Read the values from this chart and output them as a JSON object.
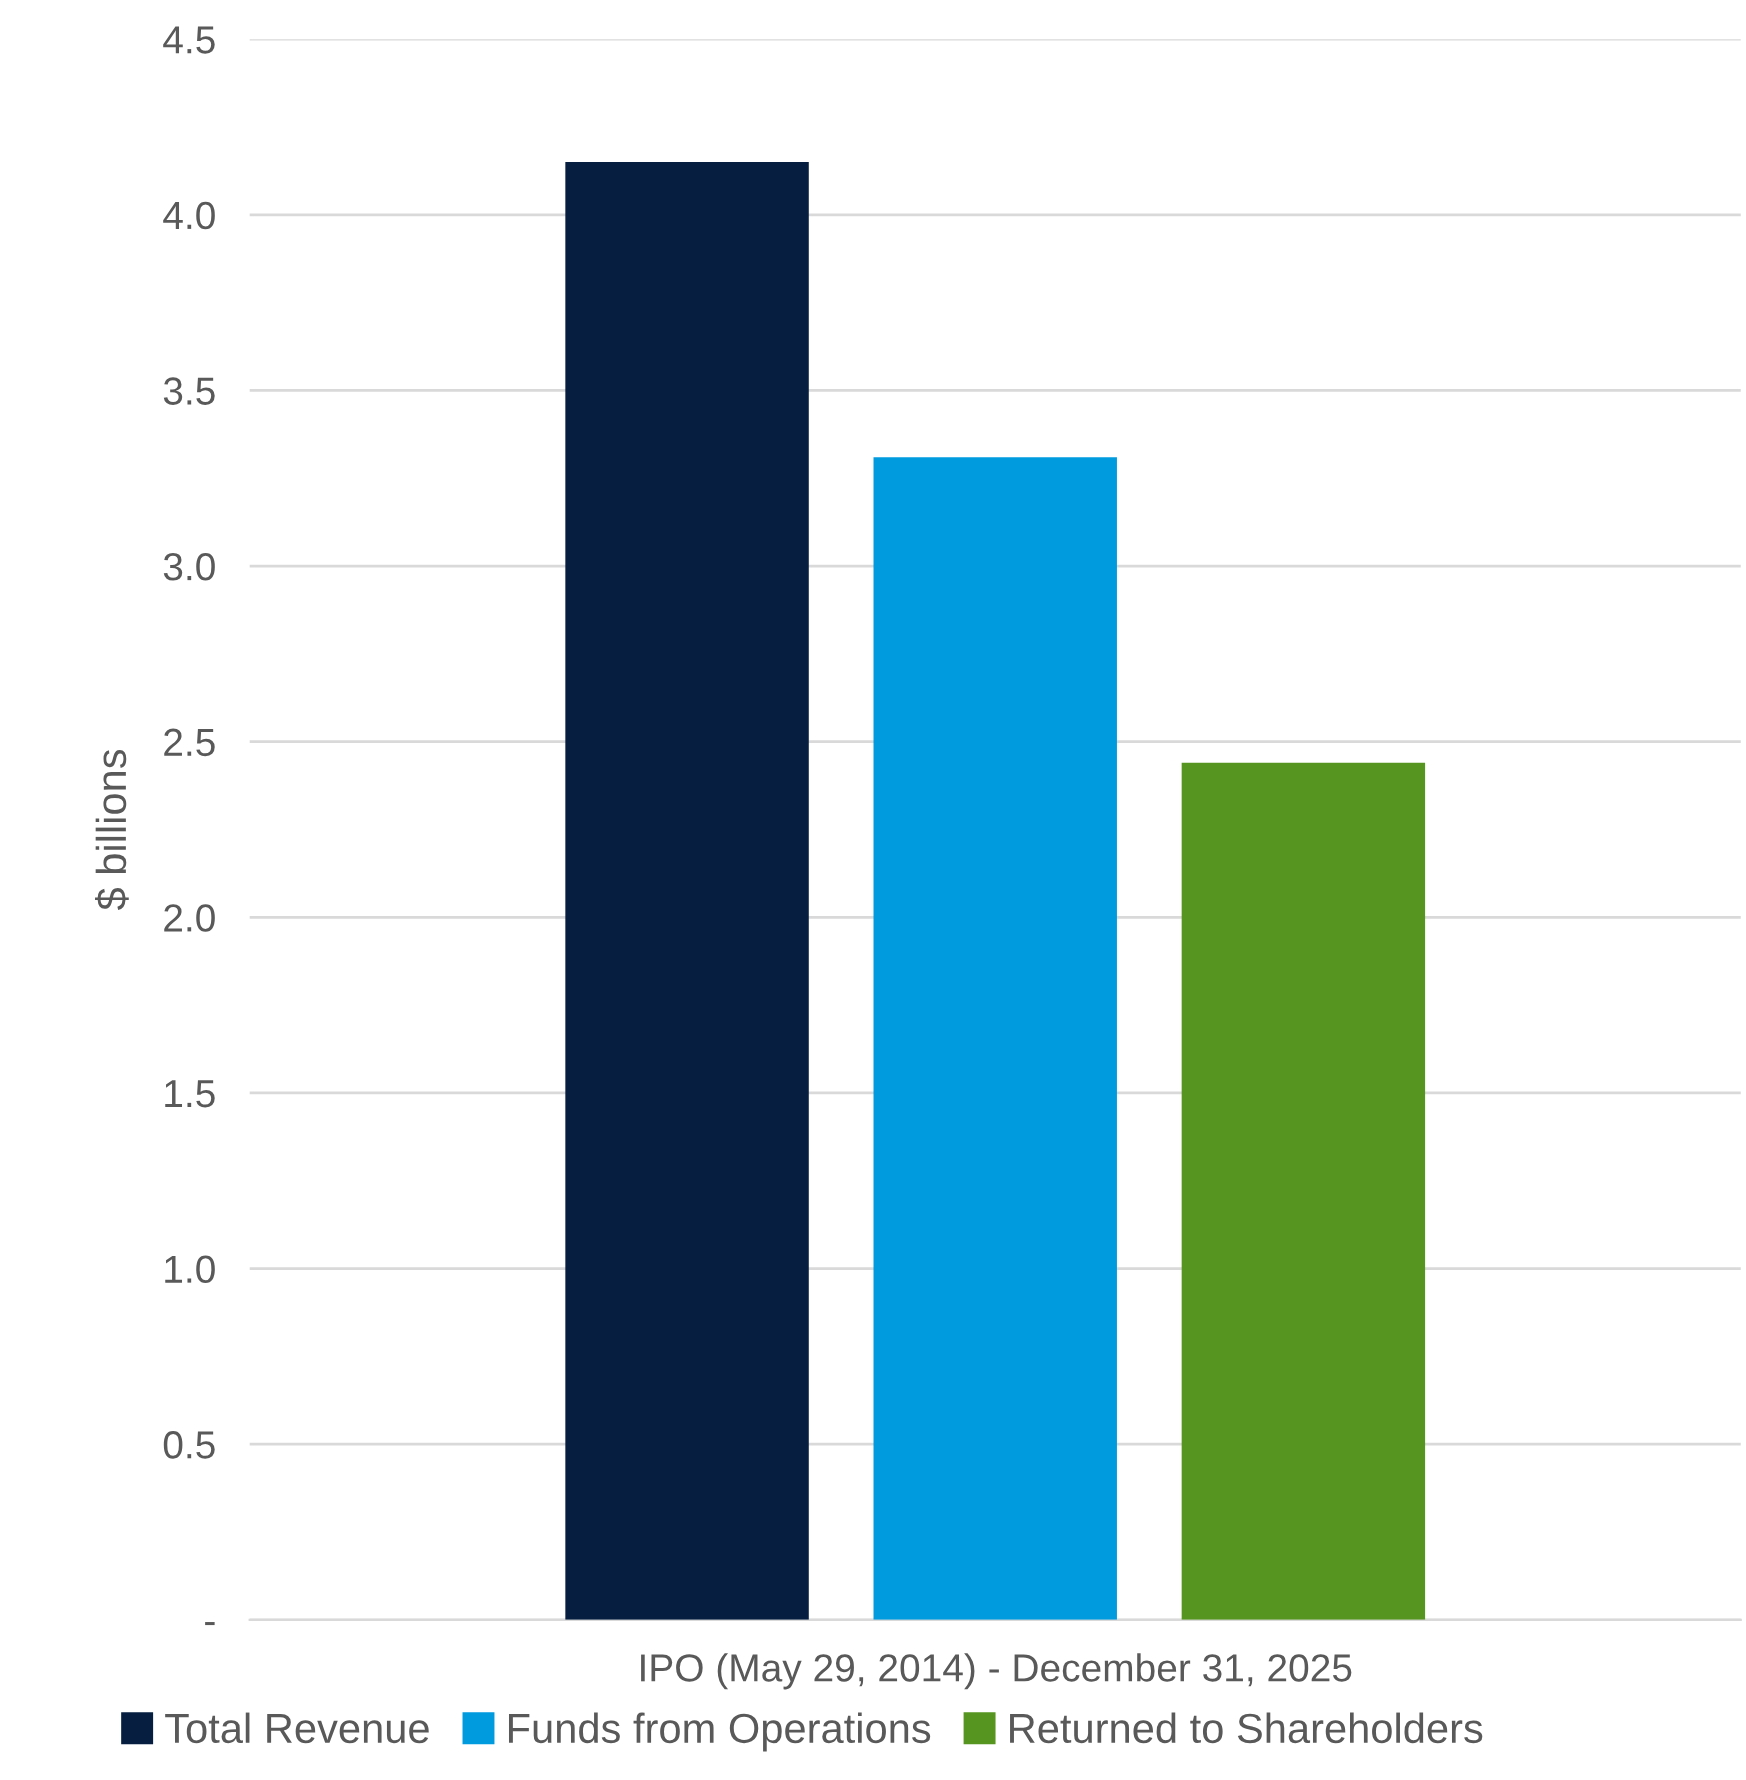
{
  "chart_data": {
    "type": "bar",
    "ylabel": "$ billions",
    "categories": [
      "IPO (May 29, 2014) - December 31, 2025"
    ],
    "series": [
      {
        "name": "Total Revenue",
        "color": "#061f41",
        "values": [
          4.15
        ]
      },
      {
        "name": "Funds from Operations",
        "color": "#009bdf",
        "values": [
          3.31
        ]
      },
      {
        "name": "Returned to Shareholders",
        "color": "#56951f",
        "values": [
          2.44
        ]
      }
    ],
    "ylim": [
      0,
      4.5
    ],
    "yticks": [
      {
        "value": 0,
        "label": "-"
      },
      0.5,
      {
        "value": 1,
        "label": "1.0"
      },
      1.5,
      {
        "value": 2,
        "label": "2.0"
      },
      2.5,
      {
        "value": 3,
        "label": "3.0"
      },
      3.5,
      {
        "value": 4,
        "label": "4.0"
      },
      4.5
    ],
    "grid": "y",
    "legend": "bottom"
  }
}
